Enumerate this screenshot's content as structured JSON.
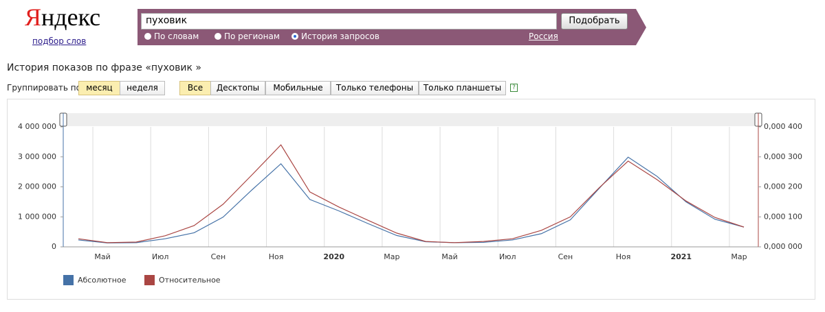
{
  "logo": {
    "title": "Яндекс",
    "subtitle": "подбор слов"
  },
  "search": {
    "query": "пуховик",
    "button": "Подобрать",
    "modes": [
      "По словам",
      "По регионам",
      "История запросов"
    ],
    "selected_mode": 2,
    "region": "Россия"
  },
  "heading": "История показов по фразе «пуховик »",
  "grouping": {
    "label": "Группировать по:",
    "options": [
      "месяц",
      "неделя"
    ],
    "selected": 0
  },
  "devices": {
    "options": [
      "Все",
      "Десктопы",
      "Мобильные",
      "Только телефоны",
      "Только планшеты"
    ],
    "selected": 0,
    "help": "?"
  },
  "chart_data": {
    "type": "line",
    "x": [
      "2019-04",
      "2019-05",
      "2019-06",
      "2019-07",
      "2019-08",
      "2019-09",
      "2019-10",
      "2019-11",
      "2019-12",
      "2020-01",
      "2020-02",
      "2020-03",
      "2020-04",
      "2020-05",
      "2020-06",
      "2020-07",
      "2020-08",
      "2020-09",
      "2020-10",
      "2020-11",
      "2020-12",
      "2021-01",
      "2021-02",
      "2021-03"
    ],
    "xticks": [
      {
        "value": "2019-05",
        "label": "Май"
      },
      {
        "value": "2019-07",
        "label": "Июл"
      },
      {
        "value": "2019-09",
        "label": "Сен"
      },
      {
        "value": "2019-11",
        "label": "Ноя"
      },
      {
        "value": "2020-01",
        "label": "2020"
      },
      {
        "value": "2020-03",
        "label": "Мар"
      },
      {
        "value": "2020-05",
        "label": "Май"
      },
      {
        "value": "2020-07",
        "label": "Июл"
      },
      {
        "value": "2020-09",
        "label": "Сен"
      },
      {
        "value": "2020-11",
        "label": "Ноя"
      },
      {
        "value": "2021-01",
        "label": "2021"
      },
      {
        "value": "2021-03",
        "label": "Мар"
      }
    ],
    "ylim": [
      0,
      4000000
    ],
    "yticks": [
      0,
      {
        "value": 1000000,
        "label": "1 000 000"
      },
      {
        "value": 2000000,
        "label": "2 000 000"
      },
      {
        "value": 3000000,
        "label": "3 000 000"
      },
      {
        "value": 4000000,
        "label": "4 000 000"
      }
    ],
    "y2lim": [
      0,
      0.0004
    ],
    "y2ticks": [
      {
        "value": 0,
        "label": "0,000 000"
      },
      {
        "value": 0.0001,
        "label": "0,000 100"
      },
      {
        "value": 0.0002,
        "label": "0,000 200"
      },
      {
        "value": 0.0003,
        "label": "0,000 300"
      },
      {
        "value": 0.0004,
        "label": "0,000 400"
      }
    ],
    "grid": true,
    "series": [
      {
        "name": "Абсолютное",
        "color": "#4572a7",
        "values": [
          230000,
          130000,
          140000,
          270000,
          470000,
          990000,
          1900000,
          2770000,
          1580000,
          1200000,
          780000,
          380000,
          170000,
          140000,
          150000,
          230000,
          440000,
          900000,
          1950000,
          2990000,
          2350000,
          1500000,
          920000,
          660000
        ]
      },
      {
        "name": "Относительное",
        "color": "#aa4643",
        "axis": "y2",
        "values": [
          2.7e-05,
          1.4e-05,
          1.6e-05,
          3.7e-05,
          7.1e-05,
          0.000142,
          0.00024,
          0.00034,
          0.000183,
          0.000133,
          8.9e-05,
          4.6e-05,
          1.8e-05,
          1.4e-05,
          1.8e-05,
          2.7e-05,
          5.5e-05,
          0.0001,
          0.000197,
          0.000286,
          0.000224,
          0.000153,
          9.8e-05,
          6.6e-05
        ]
      }
    ]
  }
}
